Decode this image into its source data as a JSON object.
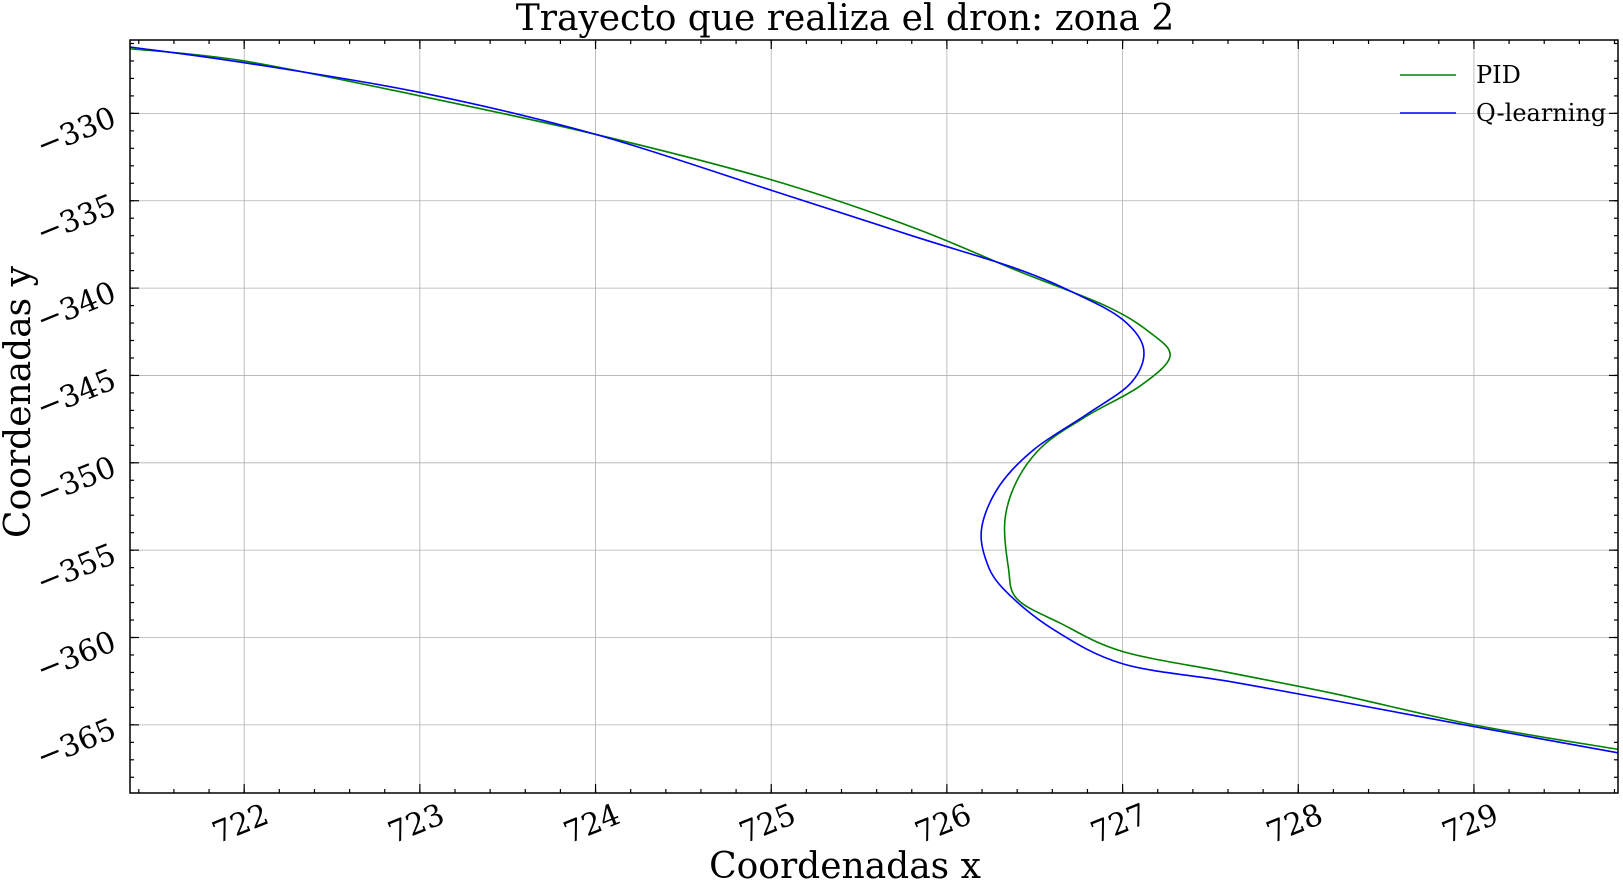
{
  "chart_data": {
    "type": "line",
    "title": "Trayecto que realiza el dron: zona 2",
    "xlabel": "Coordenadas x",
    "ylabel": "Coordenadas y",
    "xlim": [
      721.35,
      729.82
    ],
    "ylim": [
      -368.9,
      -325.8
    ],
    "xticks": [
      722,
      723,
      724,
      725,
      726,
      727,
      728,
      729
    ],
    "yticks": [
      -330,
      -335,
      -340,
      -345,
      -350,
      -355,
      -360,
      -365
    ],
    "xtick_labels": [
      "722",
      "723",
      "724",
      "725",
      "726",
      "727",
      "728",
      "729"
    ],
    "ytick_labels": [
      "−330",
      "−335",
      "−340",
      "−345",
      "−350",
      "−355",
      "−360",
      "−365"
    ],
    "grid": true,
    "legend_position": "top-right",
    "series": [
      {
        "name": "PID",
        "color": "#008000",
        "points": [
          [
            721.35,
            -326.3
          ],
          [
            722.0,
            -327.0
          ],
          [
            723.0,
            -329.0
          ],
          [
            724.0,
            -331.2
          ],
          [
            725.0,
            -333.8
          ],
          [
            725.8,
            -336.5
          ],
          [
            726.4,
            -339.0
          ],
          [
            726.9,
            -341.0
          ],
          [
            727.15,
            -342.5
          ],
          [
            727.27,
            -343.9
          ],
          [
            727.1,
            -345.6
          ],
          [
            726.8,
            -347.3
          ],
          [
            726.55,
            -349.0
          ],
          [
            726.4,
            -351.0
          ],
          [
            726.33,
            -353.3
          ],
          [
            726.35,
            -356.0
          ],
          [
            726.4,
            -357.8
          ],
          [
            726.65,
            -359.2
          ],
          [
            727.0,
            -360.8
          ],
          [
            727.6,
            -362.0
          ],
          [
            728.2,
            -363.2
          ],
          [
            729.0,
            -365.0
          ],
          [
            729.82,
            -366.4
          ]
        ]
      },
      {
        "name": "Q-learning",
        "color": "#0000ff",
        "points": [
          [
            721.35,
            -326.2
          ],
          [
            722.0,
            -327.1
          ],
          [
            723.0,
            -328.8
          ],
          [
            724.0,
            -331.2
          ],
          [
            725.0,
            -334.4
          ],
          [
            725.8,
            -337.0
          ],
          [
            726.4,
            -338.9
          ],
          [
            726.75,
            -340.4
          ],
          [
            727.0,
            -341.8
          ],
          [
            727.12,
            -343.5
          ],
          [
            727.05,
            -345.4
          ],
          [
            726.8,
            -347.2
          ],
          [
            726.5,
            -349.2
          ],
          [
            726.3,
            -351.3
          ],
          [
            726.2,
            -353.6
          ],
          [
            726.22,
            -355.5
          ],
          [
            726.32,
            -357.2
          ],
          [
            726.6,
            -359.5
          ],
          [
            727.0,
            -361.5
          ],
          [
            727.6,
            -362.5
          ],
          [
            728.2,
            -363.6
          ],
          [
            729.0,
            -365.1
          ],
          [
            729.82,
            -366.6
          ]
        ]
      }
    ]
  }
}
